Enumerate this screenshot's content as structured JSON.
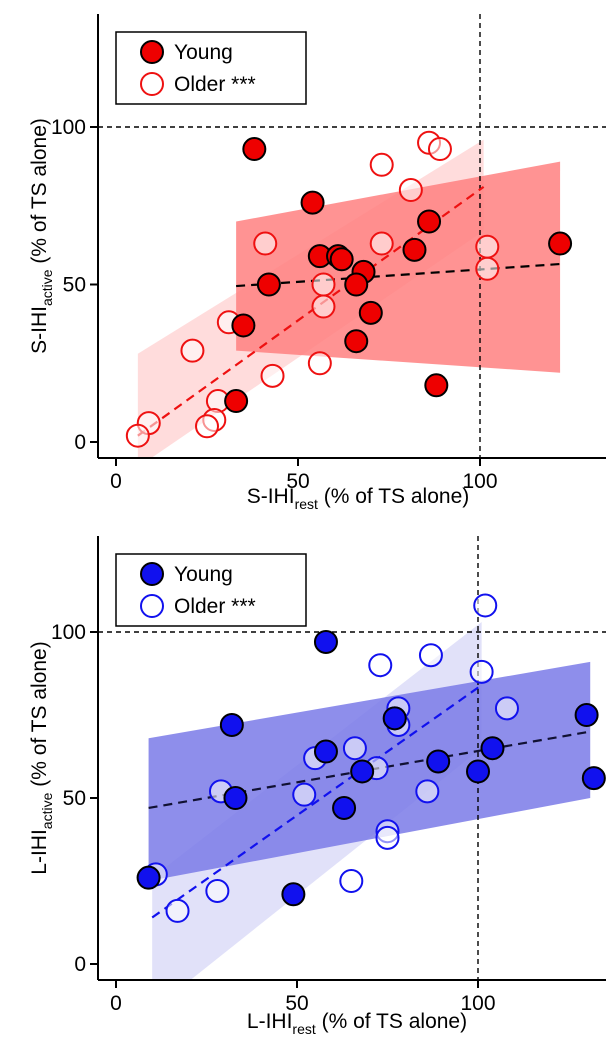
{
  "chart_data": [
    {
      "type": "scatter",
      "xlabel": {
        "main": "S-IHI",
        "sub": "rest",
        "rest": " (% of TS alone)"
      },
      "ylabel": {
        "main": "S-IHI",
        "sub": "active",
        "rest": " (% of TS alone)"
      },
      "xlim": [
        -3,
        133
      ],
      "ylim": [
        -6,
        135
      ],
      "xticks": [
        0,
        50,
        100
      ],
      "yticks": [
        0,
        50,
        100
      ],
      "reference_lines": {
        "x": 100,
        "y": 100
      },
      "colors": {
        "young_fill": "#ee0000",
        "older_stroke": "#ee1111",
        "young_band": "#ff8080",
        "older_band": "#ffd6d6",
        "young_fit": "#000000",
        "older_fit": "#ee1111"
      },
      "legend": {
        "position": "top-left",
        "entries": [
          {
            "name": "Young",
            "marker": "filled"
          },
          {
            "name": "Older ***",
            "marker": "open"
          }
        ]
      },
      "series": [
        {
          "name": "Young",
          "points": [
            [
              38,
              93
            ],
            [
              54,
              76
            ],
            [
              86,
              70
            ],
            [
              56,
              59
            ],
            [
              61,
              59
            ],
            [
              62,
              58
            ],
            [
              82,
              61
            ],
            [
              68,
              54
            ],
            [
              66,
              50
            ],
            [
              42,
              50
            ],
            [
              35,
              37
            ],
            [
              70,
              41
            ],
            [
              66,
              32
            ],
            [
              33,
              13
            ],
            [
              88,
              18
            ],
            [
              122,
              63
            ]
          ],
          "fit": {
            "x": [
              33,
              122
            ],
            "y": [
              49.5,
              56.5
            ]
          },
          "band": {
            "x": [
              33,
              122
            ],
            "upper": [
              70,
              89
            ],
            "lower": [
              29,
              22
            ]
          }
        },
        {
          "name": "Older ***",
          "points": [
            [
              86,
              95
            ],
            [
              89,
              93
            ],
            [
              73,
              88
            ],
            [
              81,
              80
            ],
            [
              41,
              63
            ],
            [
              73,
              63
            ],
            [
              102,
              62
            ],
            [
              102,
              55
            ],
            [
              57,
              50
            ],
            [
              57,
              43
            ],
            [
              31,
              38
            ],
            [
              21,
              29
            ],
            [
              43,
              21
            ],
            [
              56,
              25
            ],
            [
              28,
              13
            ],
            [
              27,
              7
            ],
            [
              25,
              5
            ],
            [
              9,
              6
            ],
            [
              6,
              2
            ]
          ],
          "fit": {
            "x": [
              6,
              101
            ],
            "y": [
              2,
              81
            ]
          },
          "band": {
            "x": [
              6,
              101
            ],
            "upper": [
              28,
              96
            ],
            "lower": [
              -8,
              67
            ]
          }
        }
      ]
    },
    {
      "type": "scatter",
      "xlabel": {
        "main": "L-IHI",
        "sub": "rest",
        "rest": " (% of TS alone)"
      },
      "ylabel": {
        "main": "L-IHI",
        "sub": "active",
        "rest": " (% of TS alone)"
      },
      "xlim": [
        -3,
        133
      ],
      "ylim": [
        -6,
        135
      ],
      "xticks": [
        0,
        50,
        100
      ],
      "yticks": [
        0,
        50,
        100
      ],
      "reference_lines": {
        "x": 100,
        "y": 100
      },
      "colors": {
        "young_fill": "#1111ee",
        "older_stroke": "#1111ee",
        "young_band": "#7a7ae8",
        "older_band": "#dcdcf8",
        "young_fit": "#111133",
        "older_fit": "#1111ee"
      },
      "legend": {
        "position": "top-left",
        "entries": [
          {
            "name": "Young",
            "marker": "filled"
          },
          {
            "name": "Older ***",
            "marker": "open"
          }
        ]
      },
      "series": [
        {
          "name": "Young",
          "points": [
            [
              58,
              97
            ],
            [
              32,
              72
            ],
            [
              77,
              74
            ],
            [
              130,
              75
            ],
            [
              58,
              64
            ],
            [
              104,
              65
            ],
            [
              132,
              56
            ],
            [
              89,
              61
            ],
            [
              100,
              58
            ],
            [
              33,
              50
            ],
            [
              68,
              58
            ],
            [
              63,
              47
            ],
            [
              9,
              26
            ],
            [
              49,
              21
            ]
          ],
          "fit": {
            "x": [
              9,
              131
            ],
            "y": [
              47,
              70
            ]
          },
          "band": {
            "x": [
              9,
              131
            ],
            "upper": [
              68,
              91
            ],
            "lower": [
              25,
              50
            ]
          }
        },
        {
          "name": "Older ***",
          "points": [
            [
              102,
              108
            ],
            [
              73,
              90
            ],
            [
              87,
              93
            ],
            [
              78,
              77
            ],
            [
              101,
              88
            ],
            [
              108,
              77
            ],
            [
              78,
              72
            ],
            [
              77,
              74
            ],
            [
              55,
              62
            ],
            [
              66,
              65
            ],
            [
              72,
              59
            ],
            [
              29,
              52
            ],
            [
              52,
              51
            ],
            [
              86,
              52
            ],
            [
              75,
              40
            ],
            [
              75,
              38
            ],
            [
              65,
              25
            ],
            [
              28,
              22
            ],
            [
              11,
              27
            ],
            [
              17,
              16
            ]
          ],
          "fit": {
            "x": [
              10,
              101
            ],
            "y": [
              14,
              84
            ]
          },
          "band": {
            "x": [
              10,
              101
            ],
            "upper": [
              26,
              103
            ],
            "lower": [
              -14,
              65
            ]
          }
        }
      ]
    }
  ]
}
